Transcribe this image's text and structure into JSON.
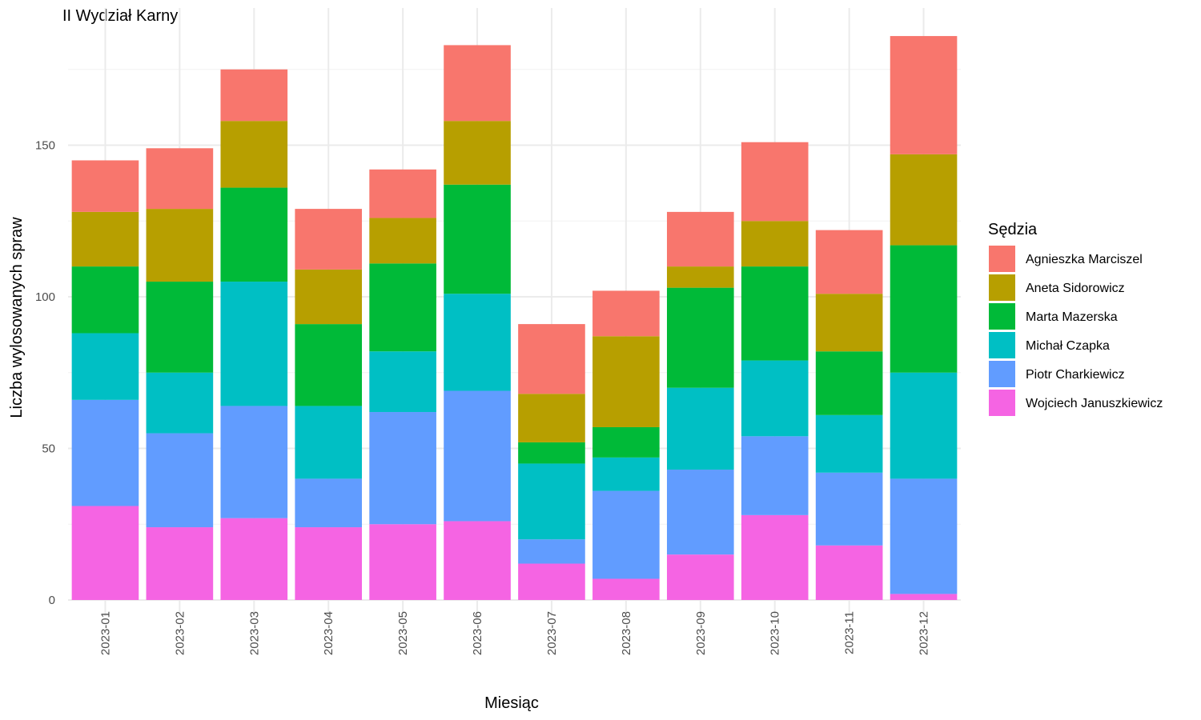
{
  "chart_data": {
    "type": "bar",
    "stacked": true,
    "title": "II Wydział Karny",
    "xlabel": "Miesiąc",
    "ylabel": "Liczba wylosowanych spraw",
    "ylim": [
      0,
      194
    ],
    "yticks": [
      0,
      50,
      100,
      150
    ],
    "grid": true,
    "legend_position": "right",
    "legend_title": "Sędzia",
    "categories": [
      "2023-01",
      "2023-02",
      "2023-03",
      "2023-04",
      "2023-05",
      "2023-06",
      "2023-07",
      "2023-08",
      "2023-09",
      "2023-10",
      "2023-11",
      "2023-12"
    ],
    "series": [
      {
        "name": "Wojciech Januszkiewicz",
        "color": "#F564E3",
        "values": [
          31,
          24,
          27,
          24,
          25,
          26,
          12,
          7,
          15,
          28,
          18,
          2
        ]
      },
      {
        "name": "Piotr Charkiewicz",
        "color": "#619CFF",
        "values": [
          35,
          31,
          37,
          16,
          37,
          43,
          8,
          29,
          28,
          26,
          24,
          38
        ]
      },
      {
        "name": "Michał Czapka",
        "color": "#00BFC4",
        "values": [
          22,
          20,
          41,
          24,
          20,
          32,
          25,
          11,
          27,
          25,
          19,
          35
        ]
      },
      {
        "name": "Marta Mazerska",
        "color": "#00BA38",
        "values": [
          22,
          30,
          31,
          27,
          29,
          36,
          7,
          10,
          33,
          31,
          21,
          42
        ]
      },
      {
        "name": "Aneta Sidorowicz",
        "color": "#B79F00",
        "values": [
          18,
          24,
          22,
          18,
          15,
          21,
          16,
          30,
          7,
          15,
          19,
          30
        ]
      },
      {
        "name": "Agnieszka Marciszel",
        "color": "#F8766D",
        "values": [
          17,
          20,
          17,
          20,
          16,
          25,
          23,
          15,
          18,
          26,
          21,
          39
        ]
      }
    ],
    "legend_order": [
      "Agnieszka Marciszel",
      "Aneta Sidorowicz",
      "Marta Mazerska",
      "Michał Czapka",
      "Piotr Charkiewicz",
      "Wojciech Januszkiewicz"
    ]
  }
}
